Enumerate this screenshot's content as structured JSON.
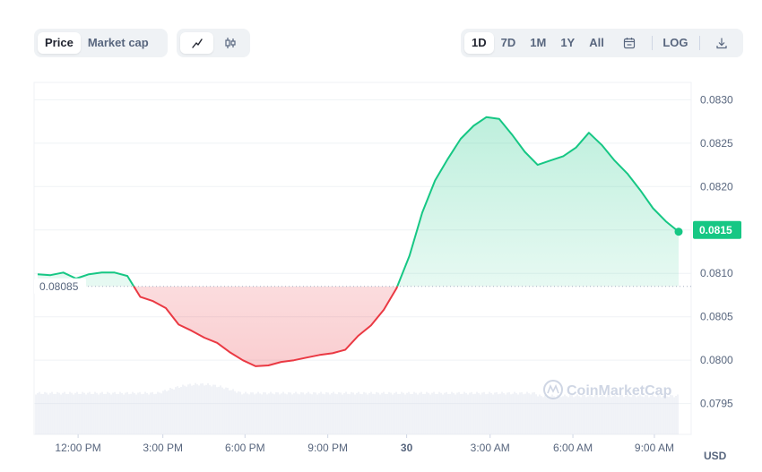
{
  "controls": {
    "type_tabs": [
      {
        "label": "Price",
        "active": true
      },
      {
        "label": "Market cap",
        "active": false
      }
    ],
    "chart_tabs": [
      {
        "icon": "line-chart-icon",
        "active": true
      },
      {
        "icon": "candlestick-icon",
        "active": false
      }
    ],
    "range_tabs": [
      {
        "label": "1D",
        "active": true
      },
      {
        "label": "7D",
        "active": false
      },
      {
        "label": "1M",
        "active": false
      },
      {
        "label": "1Y",
        "active": false
      },
      {
        "label": "All",
        "active": false
      }
    ],
    "calendar_icon": "calendar-icon",
    "log_label": "LOG",
    "download_icon": "download-icon"
  },
  "colors": {
    "up": "#16c784",
    "down": "#ea3943",
    "accent": "#16c784"
  },
  "watermark": "CoinMarketCap",
  "chart_data": {
    "type": "line",
    "title": "",
    "xlabel": "",
    "ylabel": "",
    "currency_label": "USD",
    "ylim": [
      0.0793,
      0.0832
    ],
    "y_ticks": [
      "0.0830",
      "0.0825",
      "0.0820",
      "0.0815",
      "0.0810",
      "0.0805",
      "0.0800",
      "0.0795"
    ],
    "x_ticks": [
      "12:00 PM",
      "3:00 PM",
      "6:00 PM",
      "9:00 PM",
      "30",
      "3:00 AM",
      "6:00 AM",
      "9:00 AM"
    ],
    "baseline": 0.08085,
    "baseline_label": "0.08085",
    "current_price": 0.0815,
    "current_label": "0.0815",
    "grid": true,
    "series": [
      {
        "x": [
          0,
          0.02,
          0.04,
          0.06,
          0.08,
          0.1,
          0.12,
          0.14,
          0.16,
          0.18,
          0.2,
          0.22,
          0.24,
          0.26,
          0.28,
          0.3,
          0.32,
          0.34,
          0.36,
          0.38,
          0.4,
          0.42,
          0.44,
          0.46,
          0.48,
          0.5,
          0.52,
          0.54,
          0.56,
          0.58,
          0.6,
          0.62,
          0.64,
          0.66,
          0.68,
          0.7,
          0.72,
          0.74,
          0.76,
          0.78,
          0.8,
          0.82,
          0.84,
          0.86,
          0.88,
          0.9,
          0.92,
          0.94,
          0.96,
          0.98,
          1
        ],
        "values": [
          0.08099,
          0.08098,
          0.08101,
          0.08094,
          0.08099,
          0.08101,
          0.08101,
          0.08097,
          0.08073,
          0.08068,
          0.0806,
          0.08041,
          0.08034,
          0.08026,
          0.0802,
          0.08009,
          0.08,
          0.07993,
          0.07994,
          0.07998,
          0.08,
          0.08003,
          0.08006,
          0.08008,
          0.08012,
          0.08028,
          0.0804,
          0.08058,
          0.08083,
          0.0812,
          0.0817,
          0.08207,
          0.08232,
          0.08255,
          0.0827,
          0.0828,
          0.08278,
          0.0826,
          0.0824,
          0.08225,
          0.0823,
          0.08235,
          0.08245,
          0.08262,
          0.08248,
          0.0823,
          0.08215,
          0.08196,
          0.08175,
          0.0816,
          0.08148
        ],
        "note": ""
      }
    ]
  }
}
